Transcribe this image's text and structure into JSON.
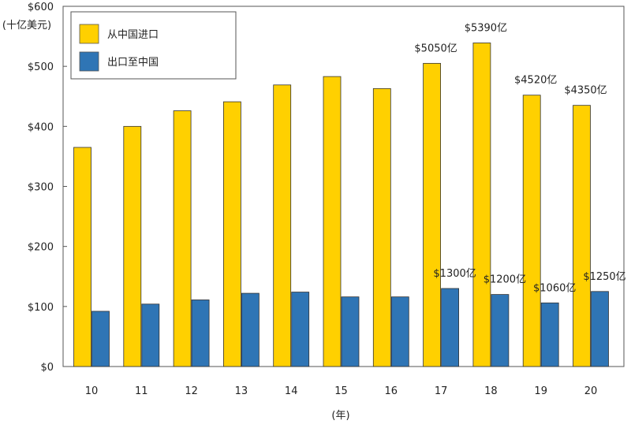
{
  "chart_data": {
    "type": "bar",
    "categories": [
      "10",
      "11",
      "12",
      "13",
      "14",
      "15",
      "16",
      "17",
      "18",
      "19",
      "20"
    ],
    "series": [
      {
        "name": "从中国进口",
        "color": "#ffd000",
        "values": [
          365,
          400,
          426,
          441,
          469,
          483,
          463,
          505,
          539,
          452,
          435
        ]
      },
      {
        "name": "出口至中国",
        "color": "#2f75b5",
        "values": [
          92,
          104,
          111,
          122,
          124,
          116,
          116,
          130,
          120,
          106,
          125
        ]
      }
    ],
    "ylim": [
      0,
      600
    ],
    "yticks": [
      "$0",
      "$100",
      "$200",
      "$300",
      "$400",
      "$500",
      "$600"
    ],
    "y_unit": "(十亿美元)",
    "xlabel": "(年)",
    "legend_position": "top-left",
    "data_labels": {
      "series0": {
        "17": "$5050亿",
        "18": "$5390亿",
        "19": "$4520亿",
        "20": "$4350亿"
      },
      "series1": {
        "17": "$1300亿",
        "18": "$1200亿",
        "19": "$1060亿",
        "20": "$1250亿"
      }
    }
  }
}
